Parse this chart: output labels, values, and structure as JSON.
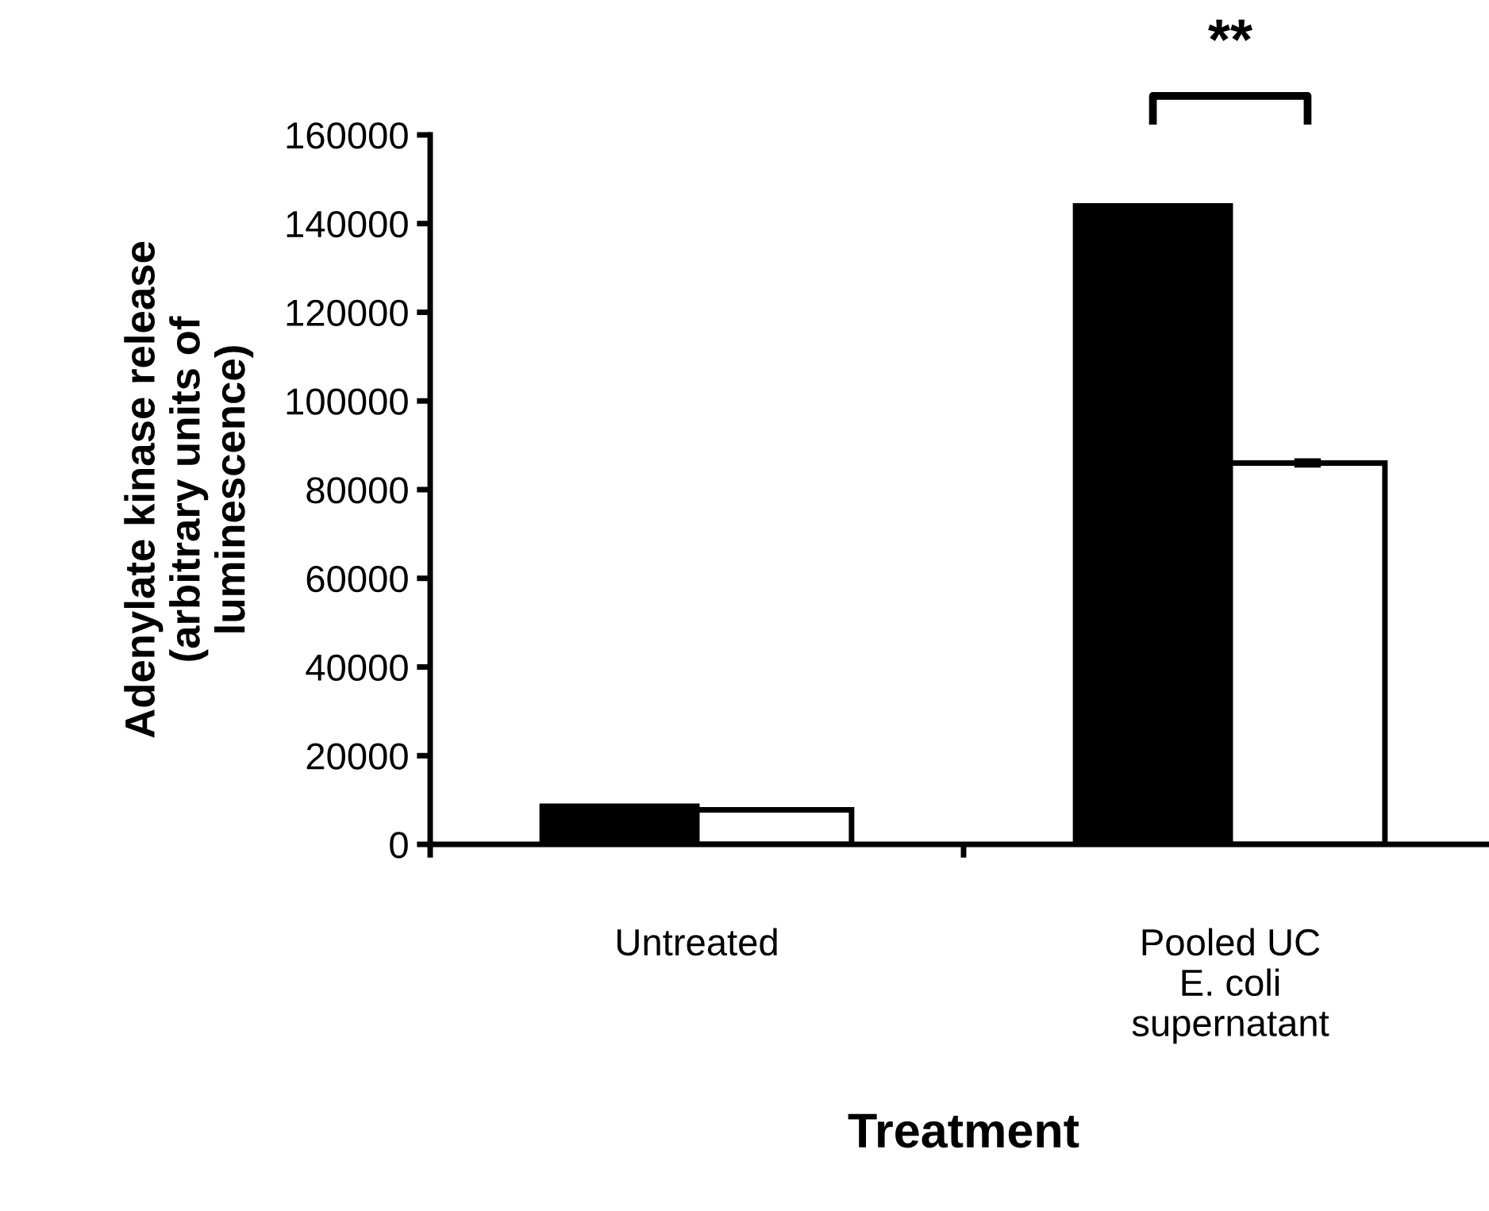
{
  "chart_data": {
    "type": "bar",
    "xlabel": "Treatment",
    "ylabel": "Adenylate kinase release\n(arbitrary units of\nluminescence)",
    "categories": [
      "Untreated",
      "Pooled UC\nE. coli\nsupernatant"
    ],
    "series": [
      {
        "color": "#000000",
        "values": [
          8600,
          144000
        ]
      },
      {
        "color": "#ffffff",
        "values": [
          7800,
          86000
        ],
        "errors": [
          null,
          800
        ]
      }
    ],
    "ylim": [
      0,
      160000
    ],
    "yticks": [
      0,
      20000,
      40000,
      60000,
      80000,
      100000,
      120000,
      140000,
      160000
    ],
    "grid": false,
    "legend": false,
    "annotations": [
      "**"
    ]
  }
}
